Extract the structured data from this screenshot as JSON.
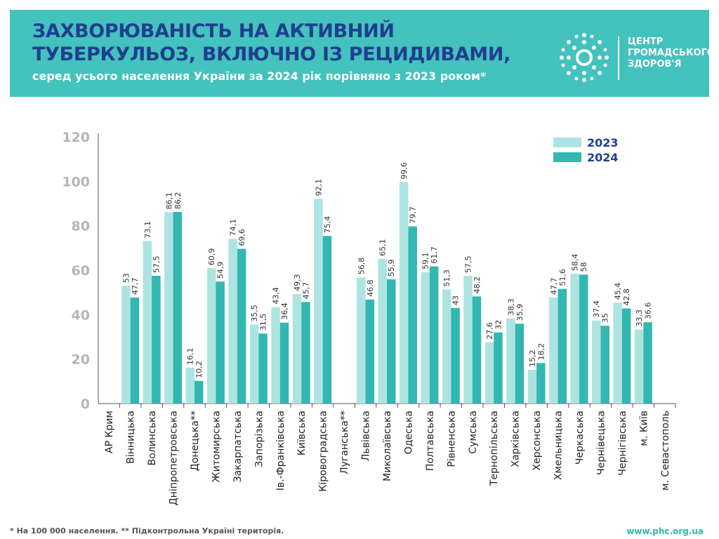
{
  "header": {
    "title_line1": "ЗАХВОРЮВАНІСТЬ НА АКТИВНИЙ",
    "title_line2": "ТУБЕРКУЛЬОЗ, ВКЛЮЧНО ІЗ РЕЦИДИВАМИ,",
    "subtitle": "серед усього населення України за 2024 рік порівняно з 2023 роком*"
  },
  "logo": {
    "line1": "ЦЕНТР",
    "line2": "ГРОМАДСЬКОГО",
    "line3": "ЗДОРОВ'Я"
  },
  "footer": {
    "note": "* На 100 000 населення. ** Підконтрольна Україні територія.",
    "url": "www.phc.org.ua"
  },
  "colors": {
    "2023": "#ade4e2",
    "2024": "#33b7b0",
    "banner": "#44c2bd",
    "title": "#1f3f8f"
  },
  "chart_data": {
    "type": "bar",
    "title": "",
    "xlabel": "",
    "ylabel": "",
    "ylim": [
      0,
      120
    ],
    "yticks": [
      0,
      20,
      40,
      60,
      80,
      100,
      120
    ],
    "legend_position": "top-right",
    "categories": [
      "АР Крим",
      "Вінницька",
      "Волинська",
      "Дніпропетровська",
      "Донецька**",
      "Житомирська",
      "Закарпатська",
      "Запорізька",
      "Ів.-Франківська",
      "Київська",
      "Кіровоградська",
      "Луганська**",
      "Львівська",
      "Миколаївська",
      "Одеська",
      "Полтавська",
      "Рівненська",
      "Сумська",
      "Тернопільська",
      "Харківська",
      "Херсонська",
      "Хмельницька",
      "Черкаська",
      "Чернівецька",
      "Чернігівська",
      "м. Київ",
      "м. Севастополь"
    ],
    "series": [
      {
        "name": "2023",
        "values": [
          null,
          53,
          73.1,
          86.1,
          16.1,
          60.9,
          74.1,
          35.5,
          43.4,
          49.3,
          92.1,
          null,
          56.8,
          65.1,
          99.6,
          59.1,
          51.3,
          57.5,
          27.6,
          38.3,
          15.2,
          47.7,
          58.4,
          37.4,
          45.4,
          33.3,
          null
        ],
        "labels": [
          "",
          "53",
          "73,1",
          "86,1",
          "16,1",
          "60,9",
          "74,1",
          "35,5",
          "43,4",
          "49,3",
          "92,1",
          "",
          "56,8",
          "65,1",
          "99,6",
          "59,1",
          "51,3",
          "57,5",
          "27,6",
          "38,3",
          "15,2",
          "47,7",
          "58,4",
          "37,4",
          "45,4",
          "33,3",
          ""
        ]
      },
      {
        "name": "2024",
        "values": [
          null,
          47.7,
          57.5,
          86.2,
          10.2,
          54.9,
          69.6,
          31.5,
          36.4,
          45.7,
          75.4,
          null,
          46.8,
          55.9,
          79.7,
          61.7,
          43,
          48.2,
          32,
          35.9,
          18.2,
          51.6,
          58,
          35,
          42.8,
          36.6,
          null
        ],
        "labels": [
          "",
          "47,7",
          "57,5",
          "86,2",
          "10,2",
          "54,9",
          "69,6",
          "31,5",
          "36,4",
          "45,7",
          "75,4",
          "",
          "46,8",
          "55,9",
          "79,7",
          "61,7",
          "43",
          "48,2",
          "32",
          "35,9",
          "18,2",
          "51,6",
          "58",
          "35",
          "42,8",
          "36,6",
          ""
        ]
      }
    ]
  }
}
